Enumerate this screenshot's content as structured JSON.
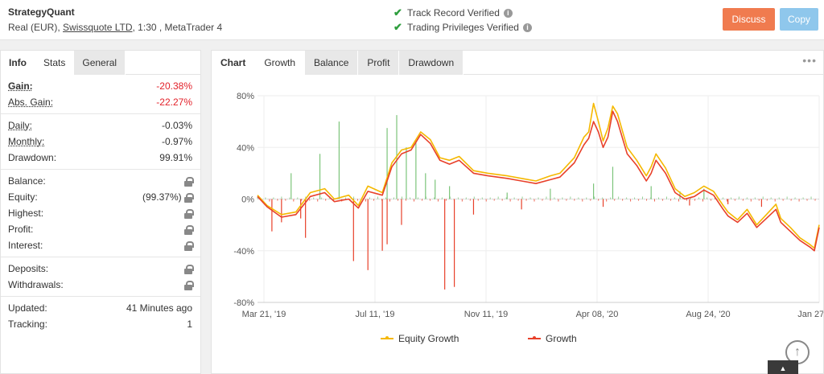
{
  "header": {
    "system_name": "StrategyQuant",
    "account_type": "Real (EUR),",
    "broker": "Swissquote LTD",
    "leverage": ", 1:30 , ",
    "platform": "MetaTrader 4",
    "verified_1": "Track Record Verified",
    "verified_2": "Trading Privileges Verified",
    "discuss_label": "Discuss",
    "copy_label": "Copy"
  },
  "left_tabs": [
    "Info",
    "Stats",
    "General"
  ],
  "stats": {
    "gain_label": "Gain:",
    "gain_value": "-20.38%",
    "abs_gain_label": "Abs. Gain:",
    "abs_gain_value": "-22.27%",
    "daily_label": "Daily:",
    "daily_value": "-0.03%",
    "monthly_label": "Monthly:",
    "monthly_value": "-0.97%",
    "drawdown_label": "Drawdown:",
    "drawdown_value": "99.91%",
    "balance_label": "Balance:",
    "equity_label": "Equity:",
    "equity_value": "(99.37%)",
    "highest_label": "Highest:",
    "profit_label": "Profit:",
    "interest_label": "Interest:",
    "deposits_label": "Deposits:",
    "withdrawals_label": "Withdrawals:",
    "updated_label": "Updated:",
    "updated_value": "41 Minutes ago",
    "tracking_label": "Tracking:",
    "tracking_value": "1"
  },
  "chart_tabs": [
    "Chart",
    "Growth",
    "Balance",
    "Profit",
    "Drawdown"
  ],
  "chart_more": "•••",
  "colors": {
    "equity": "#f5b800",
    "growth": "#e8402a",
    "bar_pos": "#7cc47a",
    "bar_neg": "#e8402a",
    "accent_discuss": "#f07b4f",
    "accent_copy": "#8fc7ec"
  },
  "chart_data": {
    "type": "line",
    "ylim": [
      -80,
      80
    ],
    "yticks": [
      "80%",
      "40%",
      "0%",
      "-40%",
      "-80%"
    ],
    "xticks": [
      "Mar 21, '19",
      "Jul 11, '19",
      "Nov 11, '19",
      "Apr 08, '20",
      "Aug 24, '20",
      "Jan 27, '21"
    ],
    "series": [
      {
        "name": "Equity Growth",
        "points": [
          [
            0,
            3
          ],
          [
            0.02,
            -5
          ],
          [
            0.05,
            -12
          ],
          [
            0.08,
            -10
          ],
          [
            0.11,
            5
          ],
          [
            0.14,
            8
          ],
          [
            0.16,
            0
          ],
          [
            0.19,
            3
          ],
          [
            0.21,
            -5
          ],
          [
            0.23,
            10
          ],
          [
            0.26,
            5
          ],
          [
            0.28,
            28
          ],
          [
            0.3,
            38
          ],
          [
            0.32,
            40
          ],
          [
            0.34,
            52
          ],
          [
            0.36,
            46
          ],
          [
            0.38,
            32
          ],
          [
            0.4,
            30
          ],
          [
            0.42,
            33
          ],
          [
            0.45,
            22
          ],
          [
            0.48,
            20
          ],
          [
            0.52,
            18
          ],
          [
            0.55,
            16
          ],
          [
            0.58,
            14
          ],
          [
            0.61,
            18
          ],
          [
            0.63,
            20
          ],
          [
            0.66,
            32
          ],
          [
            0.68,
            48
          ],
          [
            0.69,
            52
          ],
          [
            0.7,
            74
          ],
          [
            0.71,
            60
          ],
          [
            0.72,
            45
          ],
          [
            0.73,
            55
          ],
          [
            0.74,
            72
          ],
          [
            0.75,
            66
          ],
          [
            0.77,
            40
          ],
          [
            0.79,
            30
          ],
          [
            0.81,
            18
          ],
          [
            0.82,
            25
          ],
          [
            0.83,
            35
          ],
          [
            0.85,
            24
          ],
          [
            0.87,
            8
          ],
          [
            0.89,
            2
          ],
          [
            0.91,
            5
          ],
          [
            0.93,
            10
          ],
          [
            0.95,
            6
          ],
          [
            0.97,
            -5
          ],
          [
            0.98,
            -10
          ],
          [
            1.0,
            -16
          ],
          [
            1.02,
            -8
          ],
          [
            1.04,
            -20
          ],
          [
            1.06,
            -12
          ],
          [
            1.08,
            -4
          ],
          [
            1.09,
            -15
          ],
          [
            1.11,
            -22
          ],
          [
            1.13,
            -30
          ],
          [
            1.15,
            -35
          ],
          [
            1.16,
            -38
          ],
          [
            1.17,
            -20
          ]
        ]
      },
      {
        "name": "Growth",
        "points": [
          [
            0,
            2
          ],
          [
            0.02,
            -6
          ],
          [
            0.05,
            -14
          ],
          [
            0.08,
            -12
          ],
          [
            0.11,
            2
          ],
          [
            0.14,
            5
          ],
          [
            0.16,
            -2
          ],
          [
            0.19,
            0
          ],
          [
            0.21,
            -7
          ],
          [
            0.23,
            6
          ],
          [
            0.26,
            3
          ],
          [
            0.28,
            25
          ],
          [
            0.3,
            35
          ],
          [
            0.32,
            38
          ],
          [
            0.34,
            50
          ],
          [
            0.36,
            43
          ],
          [
            0.38,
            30
          ],
          [
            0.4,
            27
          ],
          [
            0.42,
            30
          ],
          [
            0.45,
            20
          ],
          [
            0.48,
            18
          ],
          [
            0.52,
            16
          ],
          [
            0.55,
            14
          ],
          [
            0.58,
            12
          ],
          [
            0.61,
            15
          ],
          [
            0.63,
            17
          ],
          [
            0.66,
            28
          ],
          [
            0.68,
            42
          ],
          [
            0.69,
            47
          ],
          [
            0.7,
            60
          ],
          [
            0.71,
            52
          ],
          [
            0.72,
            40
          ],
          [
            0.73,
            48
          ],
          [
            0.74,
            68
          ],
          [
            0.75,
            60
          ],
          [
            0.77,
            35
          ],
          [
            0.79,
            26
          ],
          [
            0.81,
            14
          ],
          [
            0.82,
            20
          ],
          [
            0.83,
            30
          ],
          [
            0.85,
            20
          ],
          [
            0.87,
            5
          ],
          [
            0.89,
            0
          ],
          [
            0.91,
            2
          ],
          [
            0.93,
            7
          ],
          [
            0.95,
            3
          ],
          [
            0.97,
            -8
          ],
          [
            0.98,
            -13
          ],
          [
            1.0,
            -18
          ],
          [
            1.02,
            -11
          ],
          [
            1.04,
            -22
          ],
          [
            1.06,
            -15
          ],
          [
            1.08,
            -8
          ],
          [
            1.09,
            -18
          ],
          [
            1.11,
            -25
          ],
          [
            1.13,
            -32
          ],
          [
            1.15,
            -37
          ],
          [
            1.16,
            -40
          ],
          [
            1.17,
            -22
          ]
        ]
      }
    ],
    "bars_pos": [
      [
        0.07,
        20
      ],
      [
        0.13,
        35
      ],
      [
        0.17,
        60
      ],
      [
        0.27,
        55
      ],
      [
        0.29,
        65
      ],
      [
        0.31,
        40
      ],
      [
        0.33,
        45
      ],
      [
        0.35,
        20
      ],
      [
        0.37,
        15
      ],
      [
        0.4,
        10
      ],
      [
        0.52,
        5
      ],
      [
        0.61,
        8
      ],
      [
        0.7,
        12
      ],
      [
        0.74,
        25
      ],
      [
        0.82,
        10
      ],
      [
        0.88,
        6
      ],
      [
        0.93,
        8
      ]
    ],
    "bars_neg": [
      [
        0.03,
        -25
      ],
      [
        0.05,
        -18
      ],
      [
        0.09,
        -15
      ],
      [
        0.1,
        -30
      ],
      [
        0.2,
        -48
      ],
      [
        0.23,
        -55
      ],
      [
        0.26,
        -40
      ],
      [
        0.27,
        -35
      ],
      [
        0.3,
        -20
      ],
      [
        0.39,
        -70
      ],
      [
        0.41,
        -68
      ],
      [
        0.45,
        -12
      ],
      [
        0.55,
        -8
      ],
      [
        0.72,
        -6
      ],
      [
        0.9,
        -5
      ],
      [
        0.98,
        -4
      ],
      [
        1.05,
        -6
      ]
    ]
  }
}
